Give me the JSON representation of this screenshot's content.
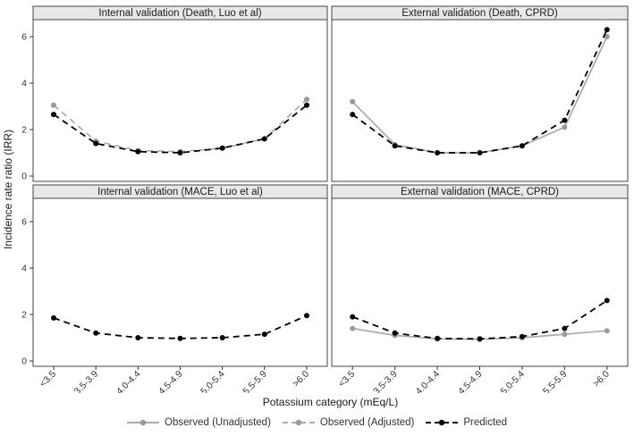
{
  "chart_data": {
    "type": "line",
    "title": "",
    "xlabel": "Potassium category (mEq/L)",
    "ylabel": "Incidence rate ratio (IRR)",
    "categories": [
      "<3.5",
      "3.5-3.9",
      "4.0-4.4",
      "4.5-4.9",
      "5.0-5.4",
      "5.5-5.9",
      ">6.0"
    ],
    "y_ticks": [
      0,
      2,
      4,
      6
    ],
    "ylim": [
      -0.25,
      6.75
    ],
    "grid": "off",
    "legend_position": "bottom",
    "facet_layout": "2x2",
    "legend": [
      {
        "label": "Observed (Unadjusted)",
        "color": "#aaaaaa",
        "dash": "solid",
        "point": "#999999"
      },
      {
        "label": "Observed (Adjusted)",
        "color": "#aaaaaa",
        "dash": "dashed",
        "point": "#999999"
      },
      {
        "label": "Predicted",
        "color": "#000000",
        "dash": "dashed",
        "point": "#000000"
      }
    ],
    "panels": [
      {
        "title": "Internal validation (Death, Luo et al)",
        "row": 0,
        "col": 0,
        "series": [
          {
            "name": "Observed (Adjusted)",
            "values": [
              3.05,
              1.5,
              1.1,
              1.05,
              1.2,
              1.6,
              3.3
            ]
          },
          {
            "name": "Predicted",
            "values": [
              2.65,
              1.4,
              1.05,
              1.0,
              1.2,
              1.6,
              3.05
            ]
          }
        ]
      },
      {
        "title": "External validation (Death, CPRD)",
        "row": 0,
        "col": 1,
        "series": [
          {
            "name": "Observed (Unadjusted)",
            "values": [
              3.2,
              1.35,
              1.0,
              1.0,
              1.3,
              2.1,
              6.0
            ]
          },
          {
            "name": "Predicted",
            "values": [
              2.65,
              1.3,
              1.0,
              1.0,
              1.3,
              2.4,
              6.3
            ]
          }
        ]
      },
      {
        "title": "Internal validation (MACE, Luo et al)",
        "row": 1,
        "col": 0,
        "series": [
          {
            "name": "Predicted",
            "values": [
              1.85,
              1.2,
              1.0,
              0.97,
              1.0,
              1.15,
              1.95
            ]
          }
        ]
      },
      {
        "title": "External validation (MACE, CPRD)",
        "row": 1,
        "col": 1,
        "series": [
          {
            "name": "Observed (Unadjusted)",
            "values": [
              1.4,
              1.1,
              0.95,
              0.93,
              1.0,
              1.15,
              1.3
            ]
          },
          {
            "name": "Predicted",
            "values": [
              1.9,
              1.2,
              0.97,
              0.95,
              1.05,
              1.4,
              2.6
            ]
          }
        ]
      }
    ],
    "colors": {
      "strip_background": "#e8e8e8",
      "panel_border": "#454545",
      "tick_text": "#333333",
      "title_text": "#1a1a1a",
      "panel_background": "#ffffff"
    }
  }
}
